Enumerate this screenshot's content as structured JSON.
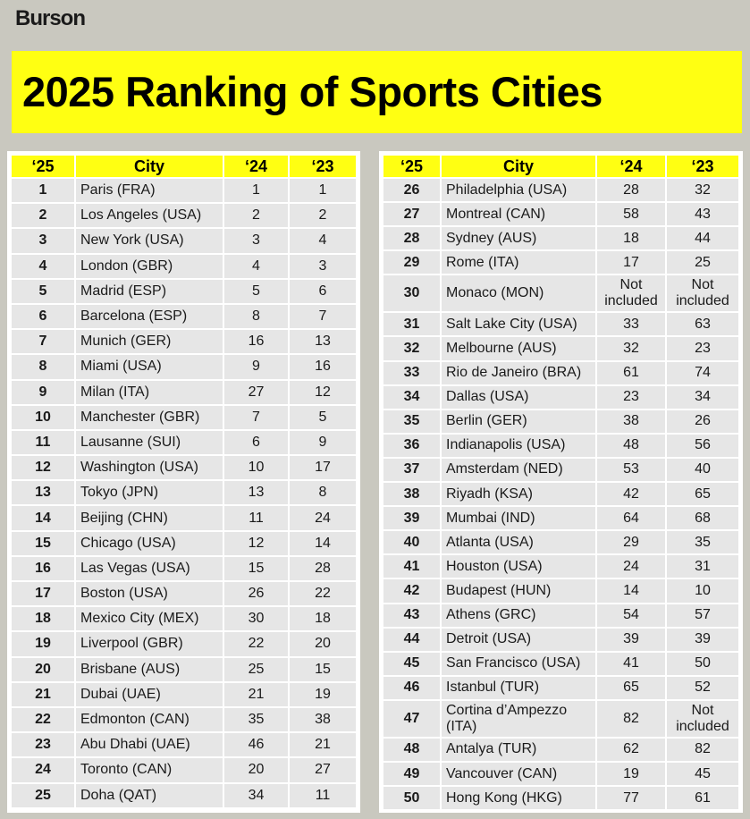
{
  "brand": "Burson",
  "title": "2025 Ranking of Sports Cities",
  "headers": {
    "rank25": "‘25",
    "city": "City",
    "rank24": "‘24",
    "rank23": "‘23"
  },
  "chart_data": {
    "type": "table",
    "title": "2025 Ranking of Sports Cities",
    "columns": [
      "‘25",
      "City",
      "‘24",
      "‘23"
    ],
    "rows": [
      [
        "1",
        "Paris (FRA)",
        "1",
        "1"
      ],
      [
        "2",
        "Los Angeles (USA)",
        "2",
        "2"
      ],
      [
        "3",
        "New York (USA)",
        "3",
        "4"
      ],
      [
        "4",
        "London (GBR)",
        "4",
        "3"
      ],
      [
        "5",
        "Madrid (ESP)",
        "5",
        "6"
      ],
      [
        "6",
        "Barcelona (ESP)",
        "8",
        "7"
      ],
      [
        "7",
        "Munich (GER)",
        "16",
        "13"
      ],
      [
        "8",
        "Miami (USA)",
        "9",
        "16"
      ],
      [
        "9",
        "Milan (ITA)",
        "27",
        "12"
      ],
      [
        "10",
        "Manchester (GBR)",
        "7",
        "5"
      ],
      [
        "11",
        "Lausanne (SUI)",
        "6",
        "9"
      ],
      [
        "12",
        "Washington (USA)",
        "10",
        "17"
      ],
      [
        "13",
        "Tokyo (JPN)",
        "13",
        "8"
      ],
      [
        "14",
        "Beijing (CHN)",
        "11",
        "24"
      ],
      [
        "15",
        "Chicago (USA)",
        "12",
        "14"
      ],
      [
        "16",
        "Las Vegas (USA)",
        "15",
        "28"
      ],
      [
        "17",
        "Boston (USA)",
        "26",
        "22"
      ],
      [
        "18",
        "Mexico City (MEX)",
        "30",
        "18"
      ],
      [
        "19",
        "Liverpool (GBR)",
        "22",
        "20"
      ],
      [
        "20",
        "Brisbane (AUS)",
        "25",
        "15"
      ],
      [
        "21",
        "Dubai (UAE)",
        "21",
        "19"
      ],
      [
        "22",
        "Edmonton (CAN)",
        "35",
        "38"
      ],
      [
        "23",
        "Abu Dhabi (UAE)",
        "46",
        "21"
      ],
      [
        "24",
        "Toronto (CAN)",
        "20",
        "27"
      ],
      [
        "25",
        "Doha (QAT)",
        "34",
        "11"
      ],
      [
        "26",
        "Philadelphia (USA)",
        "28",
        "32"
      ],
      [
        "27",
        "Montreal (CAN)",
        "58",
        "43"
      ],
      [
        "28",
        "Sydney (AUS)",
        "18",
        "44"
      ],
      [
        "29",
        "Rome (ITA)",
        "17",
        "25"
      ],
      [
        "30",
        "Monaco (MON)",
        "Not included",
        "Not included"
      ],
      [
        "31",
        "Salt Lake City (USA)",
        "33",
        "63"
      ],
      [
        "32",
        "Melbourne (AUS)",
        "32",
        "23"
      ],
      [
        "33",
        "Rio de Janeiro (BRA)",
        "61",
        "74"
      ],
      [
        "34",
        "Dallas (USA)",
        "23",
        "34"
      ],
      [
        "35",
        "Berlin (GER)",
        "38",
        "26"
      ],
      [
        "36",
        "Indianapolis (USA)",
        "48",
        "56"
      ],
      [
        "37",
        "Amsterdam (NED)",
        "53",
        "40"
      ],
      [
        "38",
        "Riyadh (KSA)",
        "42",
        "65"
      ],
      [
        "39",
        "Mumbai (IND)",
        "64",
        "68"
      ],
      [
        "40",
        "Atlanta (USA)",
        "29",
        "35"
      ],
      [
        "41",
        "Houston (USA)",
        "24",
        "31"
      ],
      [
        "42",
        "Budapest (HUN)",
        "14",
        "10"
      ],
      [
        "43",
        "Athens (GRC)",
        "54",
        "57"
      ],
      [
        "44",
        "Detroit (USA)",
        "39",
        "39"
      ],
      [
        "45",
        "San Francisco (USA)",
        "41",
        "50"
      ],
      [
        "46",
        "Istanbul (TUR)",
        "65",
        "52"
      ],
      [
        "47",
        "Cortina d’Ampezzo (ITA)",
        "82",
        "Not included"
      ],
      [
        "48",
        "Antalya (TUR)",
        "62",
        "82"
      ],
      [
        "49",
        "Vancouver (CAN)",
        "19",
        "45"
      ],
      [
        "50",
        "Hong Kong (HKG)",
        "77",
        "61"
      ]
    ]
  },
  "colors": {
    "accent": "#ffff12",
    "background": "#c9c8bf",
    "cell": "#e6e6e6"
  }
}
